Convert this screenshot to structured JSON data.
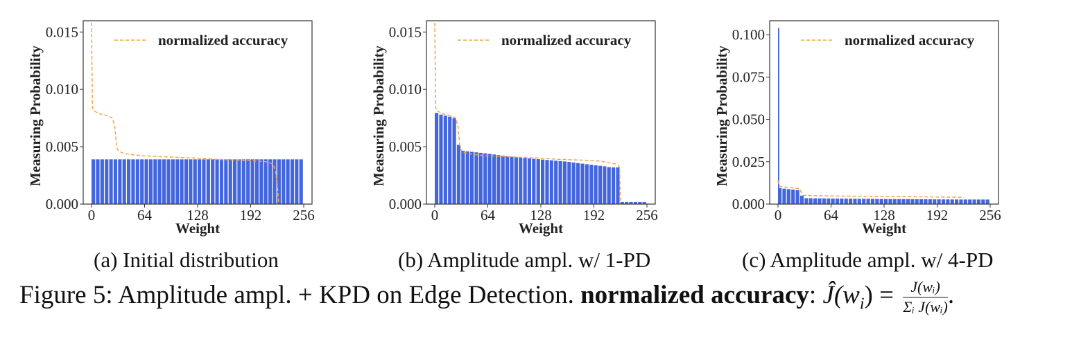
{
  "colors": {
    "bar": "#4466dd",
    "accuracy_line": "#f5a24a",
    "axis": "#333333",
    "background": "#ffffff"
  },
  "chart_data": [
    {
      "type": "bar",
      "panel_caption": "(a) Initial distribution",
      "xlabel": "Weight",
      "ylabel": "Measuring Probability",
      "xlim": [
        0,
        256
      ],
      "ylim": [
        0,
        0.0158
      ],
      "xticks": [
        0,
        64,
        128,
        192,
        256
      ],
      "xtick_labels": [
        "0",
        "64",
        "128",
        "192",
        "256"
      ],
      "yticks": [
        0.0,
        0.005,
        0.01,
        0.015
      ],
      "ytick_labels": [
        "0.000",
        "0.005",
        "0.010",
        "0.015"
      ],
      "legend": {
        "entries": [
          "normalized accuracy"
        ],
        "placement": "top-right"
      },
      "grid": false,
      "bars": {
        "start": 0,
        "end": 256,
        "count": 48,
        "segments": [
          [
            0,
            256,
            0.0039
          ]
        ]
      },
      "line": {
        "name": "normalized accuracy",
        "x": [
          0,
          0.5,
          1,
          2,
          4,
          8,
          14,
          20,
          25,
          28,
          29,
          30,
          31,
          32,
          34,
          36,
          40,
          50,
          64,
          80,
          96,
          112,
          128,
          150,
          170,
          190,
          200,
          210,
          215,
          218,
          220,
          222,
          224,
          226
        ],
        "y": [
          0.0158,
          0.0125,
          0.0085,
          0.0082,
          0.0081,
          0.0079,
          0.0078,
          0.0077,
          0.0075,
          0.0068,
          0.006,
          0.0052,
          0.0048,
          0.0047,
          0.0046,
          0.0045,
          0.0044,
          0.0043,
          0.0042,
          0.00415,
          0.0041,
          0.00405,
          0.004,
          0.0039,
          0.00385,
          0.0038,
          0.00375,
          0.0037,
          0.0036,
          0.0035,
          0.0033,
          0.0029,
          0.0018,
          0.0
        ]
      }
    },
    {
      "type": "bar",
      "panel_caption": "(b) Amplitude ampl. w/ 1-PD",
      "xlabel": "Weight",
      "ylabel": "Measuring Probability",
      "xlim": [
        0,
        256
      ],
      "ylim": [
        0,
        0.0158
      ],
      "xticks": [
        0,
        64,
        128,
        192,
        256
      ],
      "xtick_labels": [
        "0",
        "64",
        "128",
        "192",
        "256"
      ],
      "yticks": [
        0.0,
        0.005,
        0.01,
        0.015
      ],
      "ytick_labels": [
        "0.000",
        "0.005",
        "0.010",
        "0.015"
      ],
      "legend": {
        "entries": [
          "normalized accuracy"
        ],
        "placement": "top-right"
      },
      "grid": false,
      "bars": {
        "start": 0,
        "end": 256,
        "count": 48,
        "profile_x": [
          0,
          1,
          8,
          20,
          27,
          29,
          30,
          40,
          64,
          96,
          128,
          160,
          192,
          205,
          212,
          223,
          224,
          256
        ],
        "profile_y": [
          0.0081,
          0.008,
          0.0078,
          0.0076,
          0.0074,
          0.0054,
          0.0047,
          0.0046,
          0.0044,
          0.0041,
          0.0039,
          0.0037,
          0.0034,
          0.0033,
          0.0032,
          0.0032,
          0.00018,
          0.00018
        ]
      },
      "line": {
        "name": "normalized accuracy",
        "x": [
          0,
          0.5,
          1,
          2,
          4,
          8,
          14,
          20,
          25,
          28,
          29,
          30,
          31,
          32,
          34,
          36,
          40,
          50,
          64,
          80,
          96,
          112,
          128,
          150,
          170,
          190,
          200,
          210,
          218,
          221,
          223,
          224
        ],
        "y": [
          0.0158,
          0.0125,
          0.0085,
          0.0082,
          0.0081,
          0.0079,
          0.0078,
          0.0077,
          0.0075,
          0.0068,
          0.006,
          0.0052,
          0.0048,
          0.0047,
          0.0046,
          0.0045,
          0.0044,
          0.0043,
          0.0042,
          0.00415,
          0.0041,
          0.00405,
          0.004,
          0.0039,
          0.00385,
          0.0038,
          0.00375,
          0.0036,
          0.0035,
          0.0034,
          0.0032,
          0.0
        ]
      }
    },
    {
      "type": "bar",
      "panel_caption": "(c) Amplitude ampl. w/ 4-PD",
      "xlabel": "Weight",
      "ylabel": "Measuring Probability",
      "xlim": [
        0,
        256
      ],
      "ylim": [
        0,
        0.107
      ],
      "xticks": [
        0,
        64,
        128,
        192,
        256
      ],
      "xtick_labels": [
        "0",
        "64",
        "128",
        "192",
        "256"
      ],
      "yticks": [
        0.0,
        0.025,
        0.05,
        0.075,
        0.1
      ],
      "ytick_labels": [
        "0.000",
        "0.025",
        "0.050",
        "0.075",
        "0.100"
      ],
      "legend": {
        "entries": [
          "normalized accuracy"
        ],
        "placement": "top-right"
      },
      "grid": false,
      "bars": {
        "start": 0,
        "end": 256,
        "count": 48,
        "spike": {
          "x": 0,
          "width": 1.5,
          "value": 0.104
        },
        "profile_x": [
          0,
          2,
          10,
          20,
          28,
          30,
          64,
          128,
          192,
          224,
          256
        ],
        "profile_y": [
          0.01,
          0.0095,
          0.009,
          0.0085,
          0.008,
          0.0035,
          0.0033,
          0.003,
          0.0028,
          0.0027,
          0.0027
        ]
      },
      "line": {
        "name": "normalized accuracy",
        "x": [
          0,
          1,
          2,
          8,
          20,
          26,
          28,
          30,
          40,
          64,
          128,
          192,
          224
        ],
        "y": [
          0.014,
          0.0115,
          0.0105,
          0.01,
          0.0095,
          0.009,
          0.007,
          0.0052,
          0.005,
          0.0048,
          0.0045,
          0.0042,
          0.004
        ]
      }
    }
  ],
  "captions": {
    "a": "(a) Initial distribution",
    "b": "(b) Amplitude ampl. w/ 1-PD",
    "c": "(c) Amplitude ampl. w/ 4-PD",
    "figure_prefix": "Figure 5: Amplitude ampl. + KPD on Edge Detection. ",
    "figure_bold": "normalized accuracy",
    "figure_colon": ":",
    "figure_formula_lhs": "Ĵ(w",
    "figure_formula_sub": "i",
    "figure_formula_mid": ") =",
    "figure_fraction_num": "J(wᵢ)",
    "figure_fraction_den": "Σᵢ J(wᵢ)",
    "figure_end": "."
  }
}
